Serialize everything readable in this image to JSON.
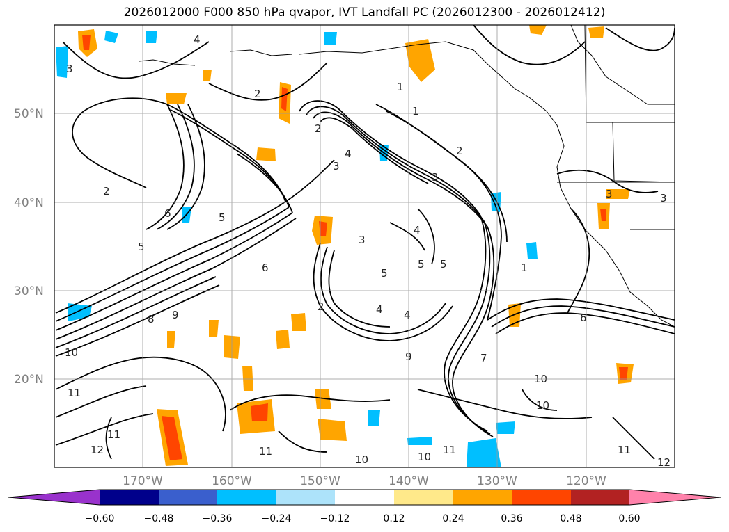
{
  "title": "2026012000 F000 850 hPa qvapor, IVT Landfall PC (2026012300 - 2026012412)",
  "map": {
    "lat_labels": [
      "50°N",
      "40°N",
      "30°N",
      "20°N"
    ],
    "lon_labels": [
      "170°W",
      "160°W",
      "150°W",
      "140°W",
      "130°W",
      "120°W"
    ],
    "contour_labels": [
      "1",
      "2",
      "3",
      "4",
      "5",
      "6",
      "7",
      "8",
      "9",
      "10",
      "11",
      "12"
    ]
  },
  "colorbar": {
    "colors": [
      "#9932CC",
      "#00008B",
      "#3A5FCD",
      "#00BFFF",
      "#ADE3FA",
      "#FFFFFF",
      "#FFE98A",
      "#FFA500",
      "#FF4500",
      "#B22222",
      "#FF82AB"
    ],
    "tick_labels": [
      "−0.60",
      "−0.48",
      "−0.36",
      "−0.24",
      "−0.12",
      "0.12",
      "0.24",
      "0.36",
      "0.48",
      "0.60"
    ]
  }
}
